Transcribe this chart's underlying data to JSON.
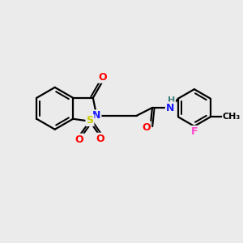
{
  "background_color": "#ebebeb",
  "atom_colors": {
    "C": "#000000",
    "N": "#1a1aff",
    "O": "#ff0000",
    "S": "#cccc00",
    "F": "#ff44cc",
    "H": "#408080"
  },
  "bond_color": "#000000",
  "bond_width": 1.6,
  "figsize": [
    3.0,
    3.0
  ],
  "dpi": 100
}
